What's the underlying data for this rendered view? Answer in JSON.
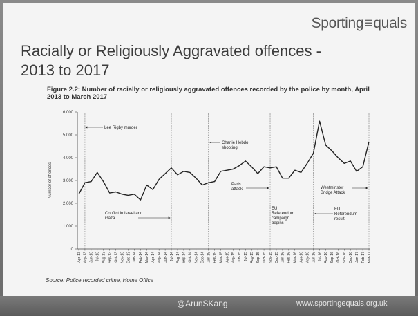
{
  "slide": {
    "logo_left": "Sporting",
    "logo_sep": "≡",
    "logo_right": "quals",
    "title": "Racially or Religiously Aggravated offences - 2013 to 2017",
    "figure_title": "Figure 2.2: Number of racially or religiously aggravated offences recorded by the police by month, April 2013 to March 2017",
    "source": "Source: Police recorded crime, Home Office"
  },
  "footer": {
    "handle": "@ArunSKang",
    "website": "www.sportingequals.org.uk"
  },
  "colors": {
    "line": "#222222",
    "background": "#f4f4f4",
    "footer": "#6b6b6b"
  },
  "chart_data": {
    "type": "line",
    "title": "Figure 2.2: Number of racially or religiously aggravated offences recorded by the police by month, April 2013 to March 2017",
    "xlabel": "",
    "ylabel": "Number of offences",
    "ylim": [
      0,
      6000
    ],
    "yticks": [
      "0",
      "1,000",
      "2,000",
      "3,000",
      "4,000",
      "5,000",
      "6,000"
    ],
    "grid": false,
    "categories": [
      "Apr-13",
      "May-13",
      "Jun-13",
      "Jul-13",
      "Aug-13",
      "Sep-13",
      "Oct-13",
      "Nov-13",
      "Dec-13",
      "Jan-14",
      "Feb-14",
      "Mar-14",
      "Apr-14",
      "May-14",
      "Jun-14",
      "Jul-14",
      "Aug-14",
      "Sep-14",
      "Oct-14",
      "Nov-14",
      "Dec-14",
      "Jan-15",
      "Feb-15",
      "Mar-15",
      "Apr-15",
      "May-15",
      "Jun-15",
      "Jul-15",
      "Aug-15",
      "Sep-15",
      "Oct-15",
      "Nov-15",
      "Dec-15",
      "Jan-16",
      "Feb-16",
      "Mar-16",
      "Apr-16",
      "May-16",
      "Jun-16",
      "Jul-16",
      "Aug-16",
      "Sep-16",
      "Oct-16",
      "Nov-16",
      "Dec-16",
      "Jan-17",
      "Feb-17",
      "Mar-17"
    ],
    "values": [
      2400,
      2900,
      2950,
      3350,
      2950,
      2450,
      2500,
      2400,
      2350,
      2400,
      2150,
      2800,
      2600,
      3050,
      3300,
      3550,
      3250,
      3400,
      3350,
      3100,
      2800,
      2900,
      2950,
      3400,
      3450,
      3500,
      3650,
      3850,
      3600,
      3300,
      3600,
      3550,
      3600,
      3100,
      3100,
      3450,
      3350,
      3750,
      4200,
      5600,
      4550,
      4300,
      4000,
      3750,
      3850,
      3400,
      3600,
      4700
    ],
    "annotations": [
      {
        "text": "Lee Rigby murder",
        "at": "May-13"
      },
      {
        "text": "Conflict in Israel and Gaza",
        "at": "Jul-14"
      },
      {
        "text": "Charlie Hebdo shooting",
        "at": "Jan-15"
      },
      {
        "text": "Paris attack",
        "at": "Nov-15"
      },
      {
        "text": "EU Referendum campaign begins",
        "at": "Apr-16"
      },
      {
        "text": "EU Referendum result",
        "at": "Jun-16"
      },
      {
        "text": "Westminster Bridge Attack",
        "at": "Mar-17"
      }
    ]
  }
}
